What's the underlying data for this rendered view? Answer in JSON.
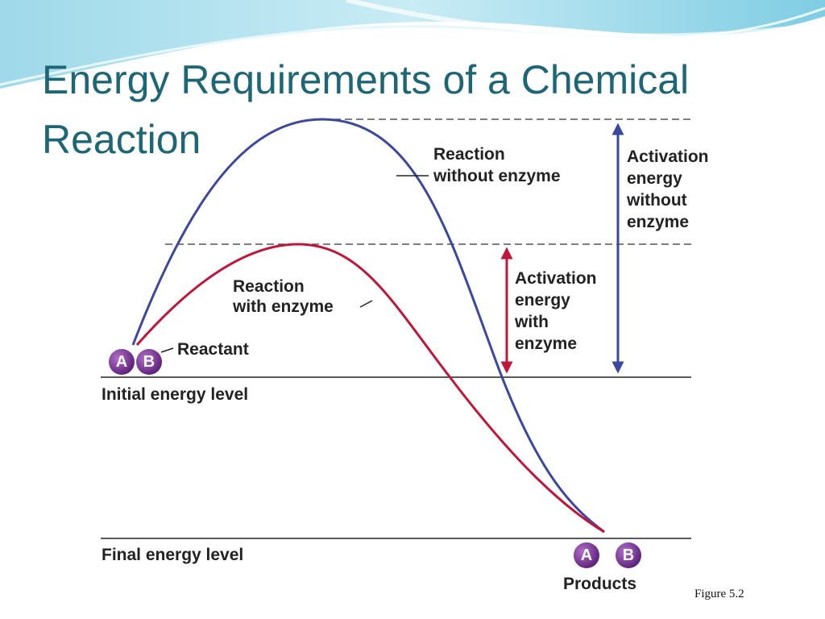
{
  "title": [
    "Energy Requirements of a Chemical",
    "Reaction"
  ],
  "figure_caption": "Figure 5.2",
  "diagram": {
    "labels": {
      "reaction_without_enzyme": [
        "Reaction",
        "without enzyme"
      ],
      "reaction_with_enzyme": [
        "Reaction",
        "with enzyme"
      ],
      "activation_without_enzyme": [
        "Activation",
        "energy",
        "without",
        "enzyme"
      ],
      "activation_with_enzyme": [
        "Activation",
        "energy",
        "with",
        "enzyme"
      ],
      "reactant": "Reactant",
      "initial_energy_level": "Initial energy level",
      "final_energy_level": "Final energy level",
      "products": "Products"
    },
    "molecules": {
      "reactant": [
        "A",
        "B"
      ],
      "products": [
        "A",
        "B"
      ]
    }
  }
}
